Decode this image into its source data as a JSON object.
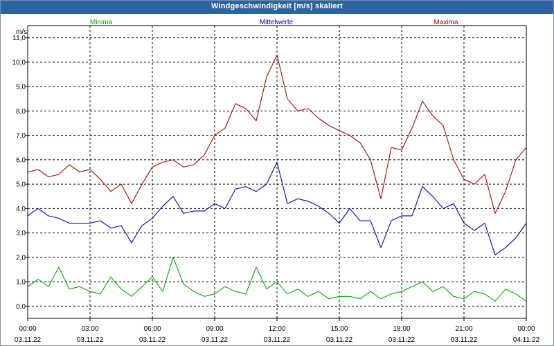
{
  "window": {
    "title": "Windgeschwindigkeit [m/s] skaliert"
  },
  "colors": {
    "minima": "#00aa00",
    "mittelwerte": "#0000bb",
    "maxima": "#aa0000",
    "titlebar": "#2d63a0"
  },
  "chart_data": {
    "type": "line",
    "title": "Windgeschwindigkeit [m/s] skaliert",
    "ylabel": "m/s",
    "xlabel": "",
    "ylim": [
      -0.5,
      11.5
    ],
    "xlim": [
      0,
      24
    ],
    "grid": true,
    "legend_position": "top",
    "y_ticks": [
      "0,0",
      "1,0",
      "2,0",
      "3,0",
      "4,0",
      "5,0",
      "6,0",
      "7,0",
      "8,0",
      "9,0",
      "10,0",
      "11,0"
    ],
    "y_tick_values": [
      0,
      1,
      2,
      3,
      4,
      5,
      6,
      7,
      8,
      9,
      10,
      11
    ],
    "x_tick_values": [
      0,
      3,
      6,
      9,
      12,
      15,
      18,
      21,
      24
    ],
    "x_ticks": [
      {
        "time": "00:00",
        "date": "03.11.22"
      },
      {
        "time": "03:00",
        "date": "03.11.22"
      },
      {
        "time": "06:00",
        "date": "03.11.22"
      },
      {
        "time": "09:00",
        "date": "03.11.22"
      },
      {
        "time": "12:00",
        "date": "03.11.22"
      },
      {
        "time": "15:00",
        "date": "03.11.22"
      },
      {
        "time": "18:00",
        "date": "03.11.22"
      },
      {
        "time": "21:00",
        "date": "03.11.22"
      },
      {
        "time": "00:00",
        "date": "04.11.22"
      }
    ],
    "x": [
      0,
      0.5,
      1,
      1.5,
      2,
      2.5,
      3,
      3.5,
      4,
      4.5,
      5,
      5.5,
      6,
      6.5,
      7,
      7.5,
      8,
      8.5,
      9,
      9.5,
      10,
      10.5,
      11,
      11.5,
      12,
      12.5,
      13,
      13.5,
      14,
      14.5,
      15,
      15.5,
      16,
      16.5,
      17,
      17.5,
      18,
      18.5,
      19,
      19.5,
      20,
      20.5,
      21,
      21.5,
      22,
      22.5,
      23,
      23.5,
      24
    ],
    "series": [
      {
        "name": "Minima",
        "color": "#00aa00",
        "values": [
          0.8,
          1.1,
          0.8,
          1.6,
          0.7,
          0.8,
          0.6,
          0.5,
          1.2,
          0.7,
          0.4,
          0.8,
          1.2,
          0.6,
          2.0,
          0.9,
          0.6,
          0.4,
          0.5,
          0.8,
          0.6,
          0.5,
          1.6,
          0.7,
          1.0,
          0.5,
          0.7,
          0.4,
          0.6,
          0.3,
          0.4,
          0.4,
          0.3,
          0.6,
          0.3,
          0.5,
          0.6,
          0.8,
          1.0,
          0.6,
          0.8,
          0.4,
          0.3,
          0.6,
          0.5,
          0.2,
          0.7,
          0.5,
          0.2
        ]
      },
      {
        "name": "Mittelwerte",
        "color": "#0000bb",
        "values": [
          3.7,
          4.0,
          3.7,
          3.6,
          3.4,
          3.4,
          3.4,
          3.5,
          3.2,
          3.3,
          2.6,
          3.3,
          3.6,
          4.1,
          4.5,
          3.8,
          3.9,
          3.9,
          4.2,
          4.0,
          4.8,
          4.9,
          4.7,
          5.0,
          5.9,
          4.2,
          4.4,
          4.3,
          4.1,
          3.8,
          3.4,
          4.0,
          3.5,
          3.5,
          2.4,
          3.5,
          3.7,
          3.7,
          4.9,
          4.5,
          4.0,
          4.2,
          3.4,
          3.1,
          3.4,
          2.1,
          2.4,
          2.8,
          3.4
        ]
      },
      {
        "name": "Maxima",
        "color": "#aa0000",
        "values": [
          5.5,
          5.6,
          5.3,
          5.4,
          5.8,
          5.5,
          5.6,
          5.2,
          4.7,
          5.0,
          4.2,
          5.0,
          5.7,
          5.9,
          6.0,
          5.7,
          5.8,
          6.2,
          7.0,
          7.3,
          8.3,
          8.1,
          7.6,
          9.4,
          10.3,
          8.5,
          8.0,
          8.1,
          7.7,
          7.4,
          7.2,
          7.0,
          6.7,
          6.0,
          4.4,
          6.5,
          6.4,
          7.3,
          8.4,
          7.8,
          7.4,
          6.0,
          5.2,
          5.0,
          5.4,
          3.8,
          4.7,
          6.0,
          6.5
        ]
      }
    ]
  }
}
